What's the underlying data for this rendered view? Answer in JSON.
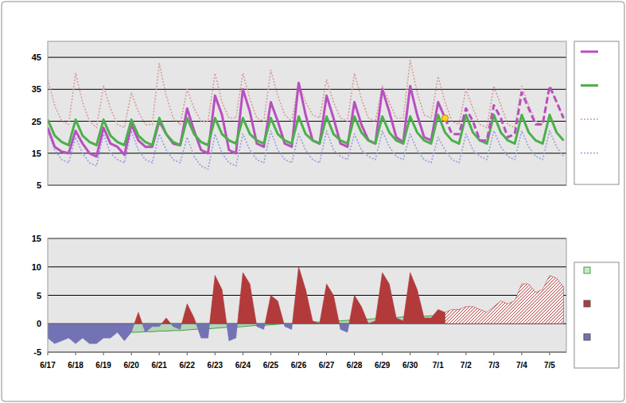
{
  "chart_data": [
    {
      "type": "line",
      "categories": [
        "6/17",
        null,
        null,
        null,
        "6/18",
        null,
        null,
        null,
        "6/19",
        null,
        null,
        null,
        "6/20",
        null,
        null,
        null,
        "6/21",
        null,
        null,
        null,
        "6/22",
        null,
        null,
        null,
        "6/23",
        null,
        null,
        null,
        "6/24",
        null,
        null,
        null,
        "6/25",
        null,
        null,
        null,
        "6/26",
        null,
        null,
        null,
        "6/27",
        null,
        null,
        null,
        "6/28",
        null,
        null,
        null,
        "6/29",
        null,
        null,
        null,
        "6/30",
        null,
        null,
        null,
        "7/1",
        null,
        null,
        null,
        "7/2",
        null,
        null,
        null,
        "7/3",
        null,
        null,
        null,
        "7/4",
        null,
        null,
        null,
        "7/5",
        null,
        null
      ],
      "ylim": [
        5,
        50
      ],
      "yticks": [
        5,
        15,
        25,
        35,
        45
      ],
      "grid": true,
      "tick_labels": "y",
      "legend": "right",
      "series": [
        {
          "color": "#b84fc0",
          "line_style": "solid",
          "values": [
            23,
            17,
            15.5,
            15,
            22,
            18,
            15,
            14,
            23,
            18,
            17,
            14.5,
            24,
            19,
            17,
            17,
            25,
            21,
            18,
            17.5,
            29,
            22,
            16,
            15,
            33,
            27,
            16,
            15,
            35,
            28,
            18,
            17,
            31,
            25,
            18,
            17,
            37,
            27,
            19,
            18,
            33,
            26,
            18,
            17,
            31,
            24,
            19,
            18,
            35,
            28,
            20,
            18.5,
            36,
            27,
            20,
            19,
            31,
            26,
            null,
            null,
            null,
            null,
            null,
            null,
            null,
            null,
            null,
            null,
            null,
            null,
            null,
            null,
            null,
            null,
            null
          ]
        },
        {
          "color": "#4caf4c",
          "line_style": "solid",
          "values": [
            25.5,
            20.5,
            18.5,
            17.5,
            25.5,
            20.5,
            18.5,
            17.5,
            25.5,
            20.5,
            18.5,
            17.5,
            25.5,
            20.5,
            18.5,
            17.5,
            26,
            21,
            18.5,
            17.5,
            26,
            21,
            18.5,
            17.5,
            26,
            21,
            19,
            18,
            26,
            21,
            19,
            18,
            26,
            21,
            19,
            18,
            26.5,
            21,
            19,
            18,
            26.5,
            21,
            19,
            18,
            26.5,
            21.5,
            19,
            18,
            26.5,
            21.5,
            19,
            18,
            26.5,
            21.5,
            19,
            18,
            27,
            21.5,
            19,
            18,
            27,
            21.5,
            19,
            18,
            27,
            21.5,
            19,
            18,
            27,
            21.5,
            19,
            18,
            27,
            21.5,
            19
          ]
        },
        {
          "color": "#d99a9a",
          "line_style": "dotted",
          "values": [
            38,
            30,
            25,
            24,
            40,
            31,
            25,
            23,
            36,
            29,
            24,
            23,
            34,
            28,
            24,
            24,
            43,
            33,
            26,
            24,
            35,
            29,
            25,
            25,
            40,
            31,
            26,
            26,
            40,
            32,
            26,
            25,
            41,
            33,
            27,
            25,
            37,
            31,
            27,
            26,
            38,
            31,
            26,
            25,
            40,
            32,
            26,
            25,
            36,
            31,
            26,
            26,
            44,
            34,
            27,
            26,
            39,
            31,
            25,
            24,
            35,
            29,
            24,
            23,
            36,
            30,
            24,
            23,
            36,
            30,
            25,
            24,
            36,
            31,
            26
          ]
        },
        {
          "color": "#9a9ae0",
          "line_style": "dotted",
          "values": [
            22,
            16,
            13,
            12,
            20,
            15,
            12,
            11,
            21,
            15,
            13,
            12,
            22,
            16,
            13,
            12,
            21,
            16,
            13,
            12,
            20,
            14,
            11,
            10,
            21,
            15,
            12,
            11,
            21,
            16,
            13,
            12,
            22,
            16,
            13,
            12,
            21,
            16,
            13,
            12,
            22,
            16,
            14,
            13,
            21,
            16,
            14,
            13,
            22,
            17,
            14,
            13,
            21,
            16,
            13,
            12,
            20,
            16,
            13,
            12,
            21,
            16,
            14,
            13,
            22,
            17,
            14,
            13,
            22,
            17,
            14,
            13,
            22,
            17,
            14
          ]
        },
        {
          "color": "#b84fc0",
          "line_style": "dashed",
          "values": [
            null,
            null,
            null,
            null,
            null,
            null,
            null,
            null,
            null,
            null,
            null,
            null,
            null,
            null,
            null,
            null,
            null,
            null,
            null,
            null,
            null,
            null,
            null,
            null,
            null,
            null,
            null,
            null,
            null,
            null,
            null,
            null,
            null,
            null,
            null,
            null,
            null,
            null,
            null,
            null,
            null,
            null,
            null,
            null,
            null,
            null,
            null,
            null,
            null,
            null,
            null,
            null,
            null,
            null,
            null,
            null,
            null,
            26,
            21,
            21,
            29,
            25,
            19,
            19,
            30,
            26,
            20,
            21,
            34,
            29,
            24,
            24,
            36,
            31,
            26
          ]
        },
        {
          "color": "#ffd21f",
          "type": "scatter",
          "marker": "circle",
          "values": [
            null,
            null,
            null,
            null,
            null,
            null,
            null,
            null,
            null,
            null,
            null,
            null,
            null,
            null,
            null,
            null,
            null,
            null,
            null,
            null,
            null,
            null,
            null,
            null,
            null,
            null,
            null,
            null,
            null,
            null,
            null,
            null,
            null,
            null,
            null,
            null,
            null,
            null,
            null,
            null,
            null,
            null,
            null,
            null,
            null,
            null,
            null,
            null,
            null,
            null,
            null,
            null,
            null,
            null,
            null,
            null,
            null,
            26,
            null,
            null,
            null,
            null,
            null,
            null,
            null,
            null,
            null,
            null,
            null,
            null,
            null,
            null,
            null,
            null,
            null
          ]
        }
      ]
    },
    {
      "type": "area",
      "categories": [
        "6/17",
        null,
        null,
        null,
        "6/18",
        null,
        null,
        null,
        "6/19",
        null,
        null,
        null,
        "6/20",
        null,
        null,
        null,
        "6/21",
        null,
        null,
        null,
        "6/22",
        null,
        null,
        null,
        "6/23",
        null,
        null,
        null,
        "6/24",
        null,
        null,
        null,
        "6/25",
        null,
        null,
        null,
        "6/26",
        null,
        null,
        null,
        "6/27",
        null,
        null,
        null,
        "6/28",
        null,
        null,
        null,
        "6/29",
        null,
        null,
        null,
        "6/30",
        null,
        null,
        null,
        "7/1",
        null,
        null,
        null,
        "7/2",
        null,
        null,
        null,
        "7/3",
        null,
        null,
        null,
        "7/4",
        null,
        null,
        null,
        "7/5",
        null,
        null
      ],
      "ylim": [
        -5,
        15
      ],
      "yticks": [
        -5,
        0,
        5,
        10,
        15
      ],
      "grid": true,
      "legend": "right",
      "series": [
        {
          "color": "#3fa03f",
          "values": [
            null,
            null,
            null,
            null,
            null,
            null,
            null,
            null,
            null,
            null,
            null,
            null,
            -1.5,
            -1.5,
            -1.4,
            -1.4,
            -1.3,
            -1.3,
            -1.2,
            -1.2,
            -1.1,
            -1.0,
            -0.9,
            -0.9,
            -0.8,
            -0.7,
            -0.6,
            -0.6,
            -0.5,
            -0.4,
            -0.3,
            -0.3,
            -0.2,
            -0.1,
            0,
            0,
            0.1,
            0.2,
            0.3,
            0.3,
            0.4,
            0.5,
            0.5,
            0.6,
            0.7,
            0.8,
            0.8,
            0.9,
            1.0,
            1.0,
            1.1,
            1.2,
            1.2,
            1.3,
            1.3,
            1.4,
            1.4,
            1.5,
            null,
            null,
            null,
            null,
            null,
            null,
            null,
            null,
            null,
            null,
            null,
            null,
            null,
            null,
            null,
            null,
            null
          ]
        },
        {
          "colors": [
            "#b23a3a",
            "#7272b4"
          ],
          "values": [
            -2.5,
            -3.5,
            -3,
            -2.5,
            -3.5,
            -2.5,
            -3.5,
            -3.5,
            -2.5,
            -2.5,
            -1.5,
            -3,
            -1.5,
            2,
            -1.5,
            -0.5,
            -0.5,
            1,
            -0.5,
            -1,
            3.5,
            1,
            -2.5,
            -2.5,
            8.5,
            6,
            -3,
            -2.5,
            9,
            7,
            -0.5,
            -1,
            5,
            4,
            -0.5,
            -1,
            10,
            6,
            0.5,
            0,
            7,
            5,
            -1,
            -1.5,
            5,
            3,
            0,
            0.5,
            9,
            7,
            1,
            0.5,
            9,
            6,
            1,
            1,
            2.5,
            2,
            null,
            null,
            null,
            null,
            null,
            null,
            null,
            null,
            null,
            null,
            null,
            null,
            null,
            null,
            null,
            null,
            null
          ]
        },
        {
          "color": "#b23a3a",
          "line_style": "hatched",
          "values": [
            null,
            null,
            null,
            null,
            null,
            null,
            null,
            null,
            null,
            null,
            null,
            null,
            null,
            null,
            null,
            null,
            null,
            null,
            null,
            null,
            null,
            null,
            null,
            null,
            null,
            null,
            null,
            null,
            null,
            null,
            null,
            null,
            null,
            null,
            null,
            null,
            null,
            null,
            null,
            null,
            null,
            null,
            null,
            null,
            null,
            null,
            null,
            null,
            null,
            null,
            null,
            null,
            null,
            null,
            null,
            null,
            null,
            2,
            2.5,
            2.5,
            3,
            3,
            2.5,
            2,
            3,
            4,
            3.5,
            4,
            7,
            7,
            5.5,
            6,
            8.5,
            8,
            6.5
          ]
        }
      ]
    }
  ]
}
